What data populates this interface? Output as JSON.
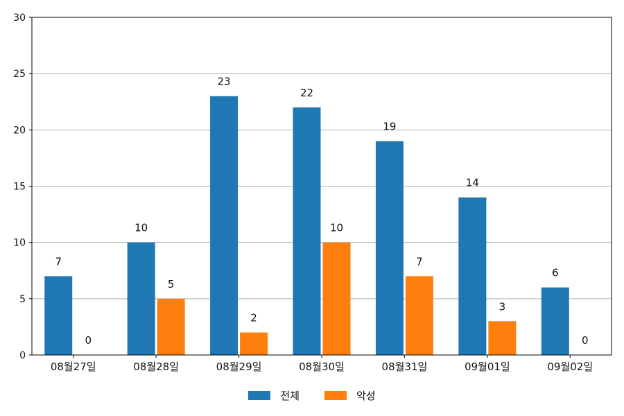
{
  "chart_data": {
    "type": "bar",
    "categories": [
      "08월27일",
      "08월28일",
      "08월29일",
      "08월30일",
      "08월31일",
      "09월01일",
      "09월02일"
    ],
    "series": [
      {
        "name": "전체",
        "values": [
          7,
          10,
          23,
          22,
          19,
          14,
          6
        ],
        "color": "#1f77b4"
      },
      {
        "name": "악성",
        "values": [
          0,
          5,
          2,
          10,
          7,
          3,
          0
        ],
        "color": "#ff7f0e"
      }
    ],
    "ylim": [
      0,
      30
    ],
    "yticks": [
      0,
      5,
      10,
      15,
      20,
      25,
      30
    ],
    "grid": true,
    "legend_position": "bottom-center",
    "data_labels": true
  }
}
